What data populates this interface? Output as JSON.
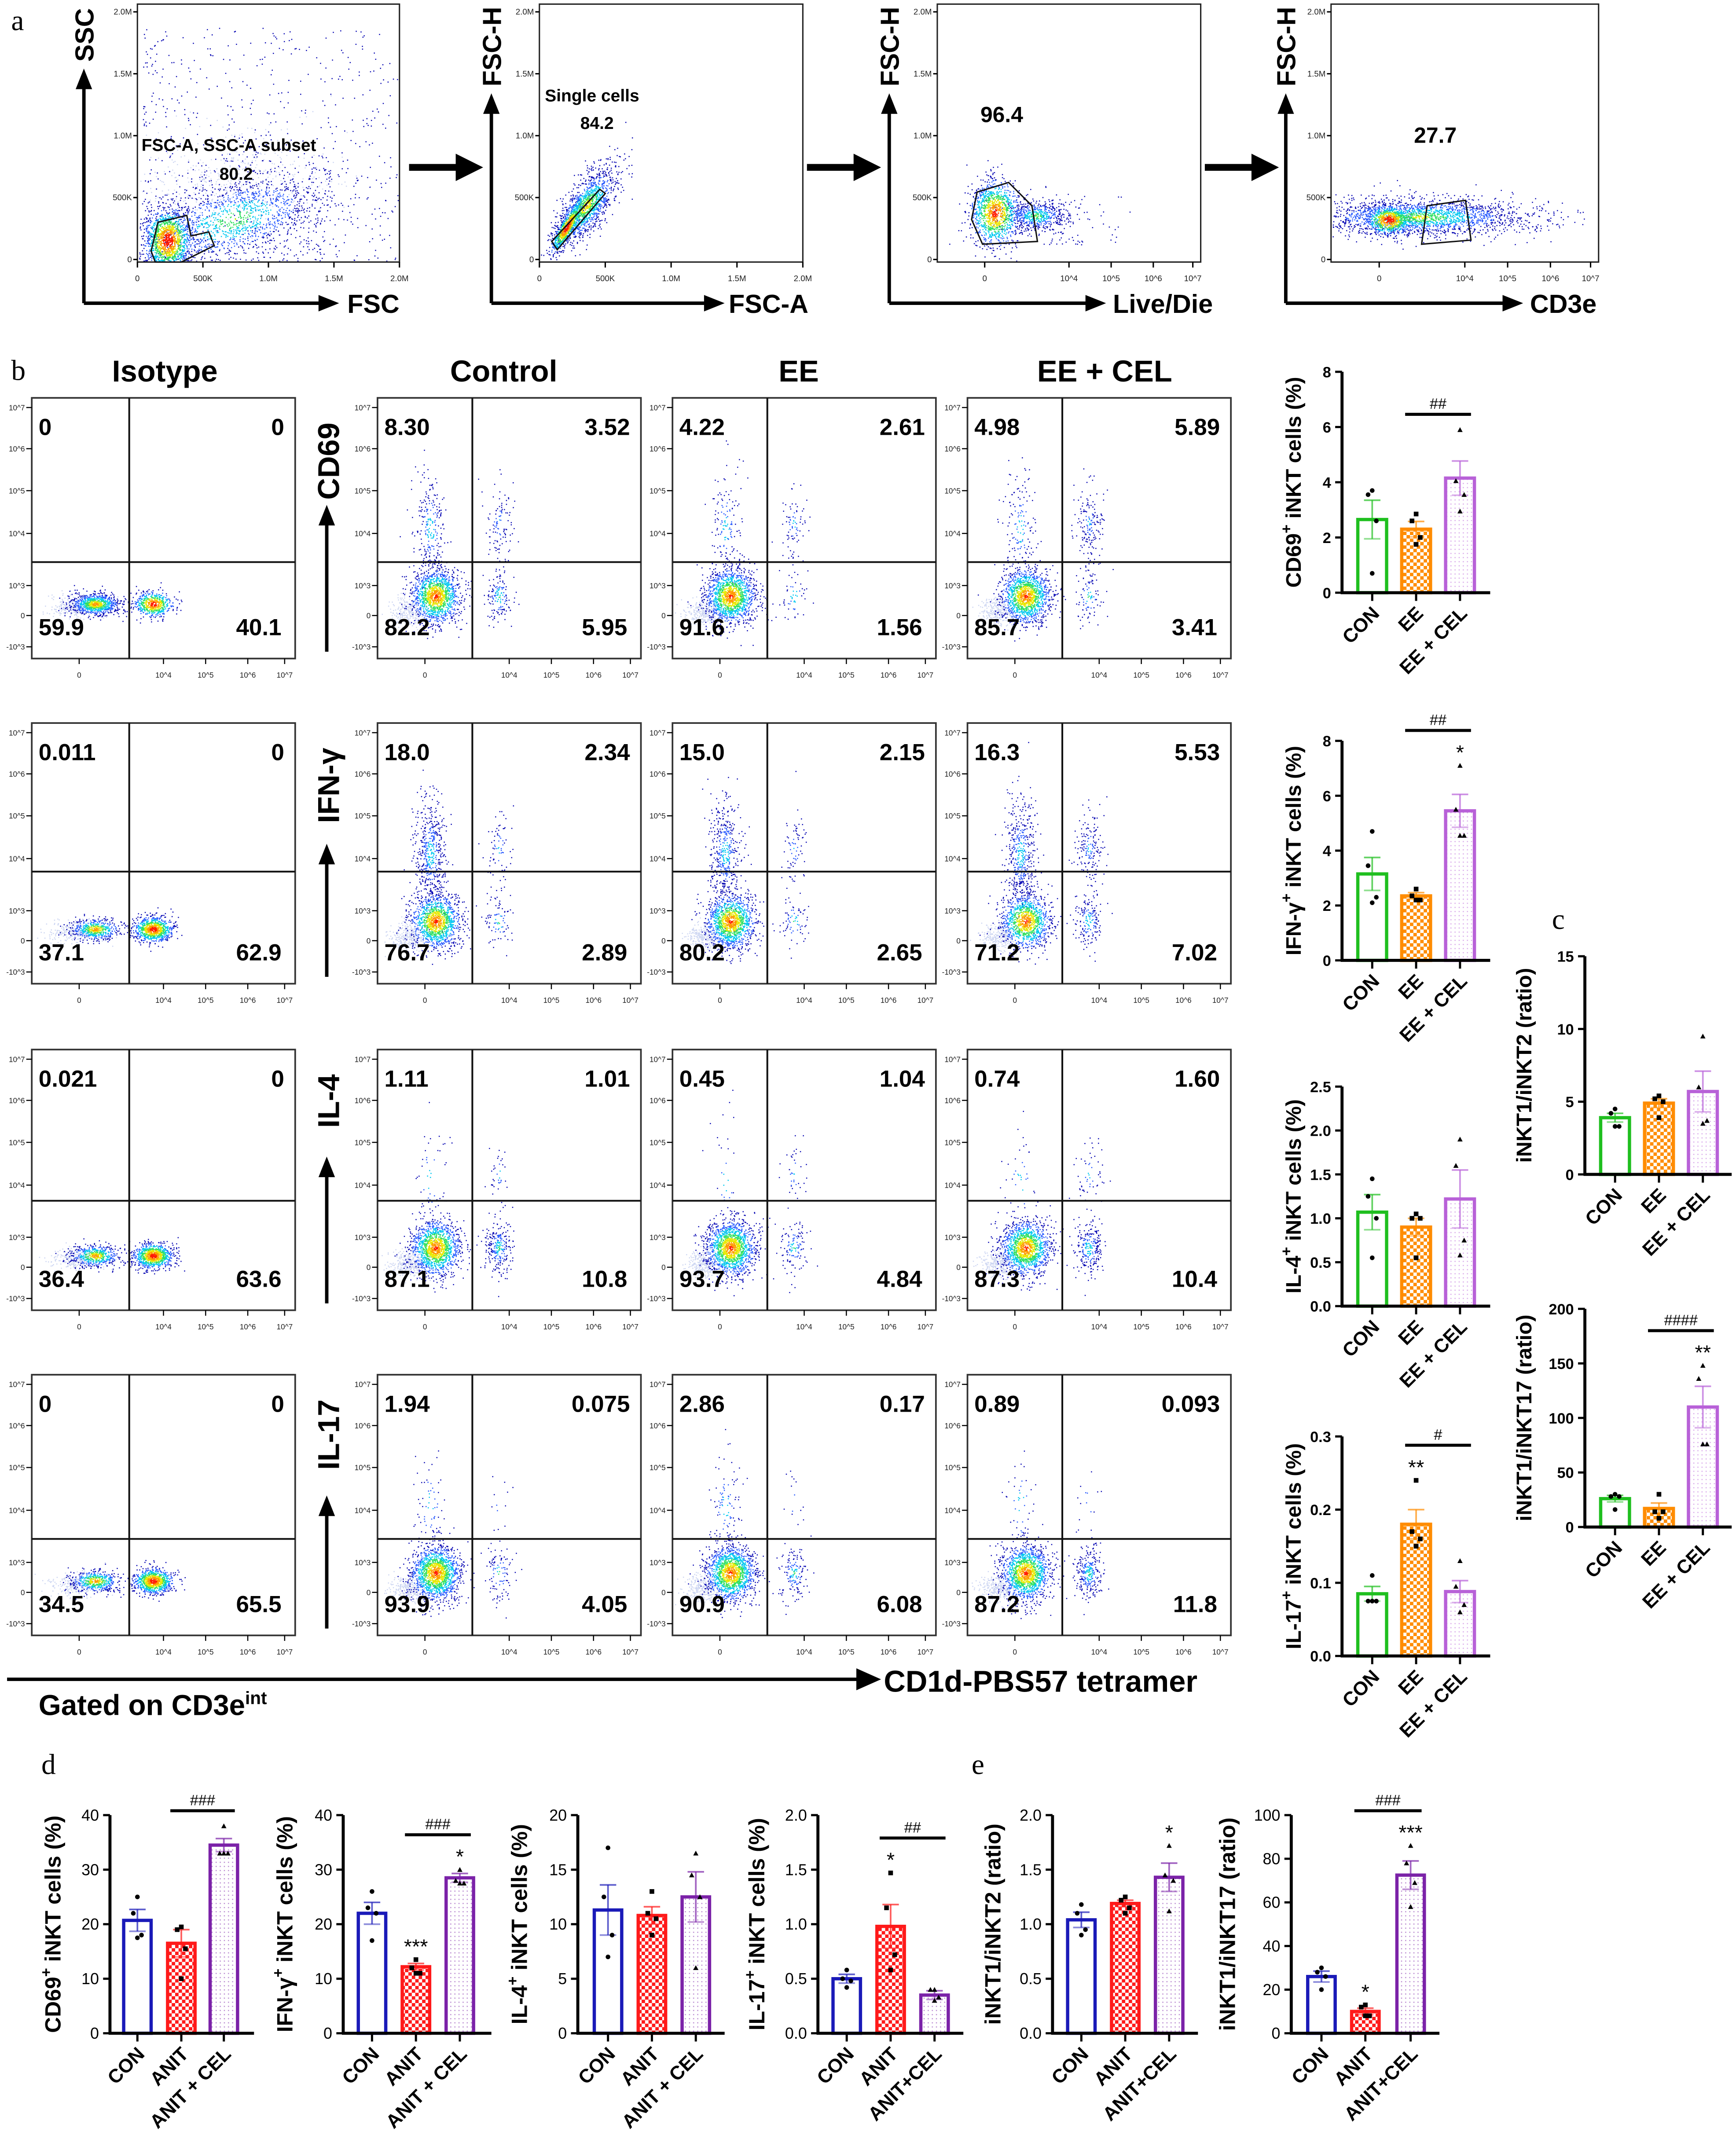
{
  "panel_labels": {
    "a": "a",
    "b": "b",
    "c": "c",
    "d": "d",
    "e": "e"
  },
  "gating": {
    "plots": [
      {
        "y_label": "SSC",
        "x_label": "FSC",
        "gate_name": "FSC-A, SSC-A subset",
        "gate_value": "80.2",
        "y_ticks": [
          "2.0M",
          "1.5M",
          "1.0M",
          "500K",
          "0"
        ],
        "x_ticks": [
          "0",
          "500K",
          "1.0M",
          "1.5M",
          "2.0M"
        ]
      },
      {
        "y_label": "FSC-H",
        "x_label": "FSC-A",
        "gate_name": "Single cells",
        "gate_value": "84.2",
        "y_ticks": [
          "2.0M",
          "1.5M",
          "1.0M",
          "500K",
          "0"
        ],
        "x_ticks": [
          "0",
          "500K",
          "1.0M",
          "1.5M",
          "2.0M"
        ]
      },
      {
        "y_label": "FSC-H",
        "x_label": "Live/Die",
        "gate_value": "96.4",
        "y_ticks": [
          "2.0M",
          "1.5M",
          "1.0M",
          "500K",
          "0"
        ],
        "x_ticks": [
          "0",
          "10^4",
          "10^5",
          "10^6",
          "10^7"
        ]
      },
      {
        "y_label": "FSC-H",
        "x_label": "CD3e",
        "gate_value": "27.7",
        "y_ticks": [
          "2.0M",
          "1.5M",
          "1.0M",
          "500K",
          "0"
        ],
        "x_ticks": [
          "0",
          "10^4",
          "10^5",
          "10^6",
          "10^7"
        ]
      }
    ]
  },
  "flow": {
    "columns": [
      "Isotype",
      "Control",
      "EE",
      "EE + CEL"
    ],
    "x_axis_label": "CD1d-PBS57 tetramer",
    "gate_note": "Gated on CD3e",
    "gate_note_sup": "int",
    "y_ticks": [
      "10^7",
      "10^6",
      "10^5",
      "10^4",
      "10^3",
      "0",
      "-10^3"
    ],
    "x_ticks": [
      "0",
      "10^4",
      "10^5",
      "10^6",
      "10^7"
    ],
    "rows": [
      {
        "marker": "CD69",
        "quadrants": [
          [
            "0",
            "0",
            "59.9",
            "40.1"
          ],
          [
            "8.30",
            "3.52",
            "82.2",
            "5.95"
          ],
          [
            "4.22",
            "2.61",
            "91.6",
            "1.56"
          ],
          [
            "4.98",
            "5.89",
            "85.7",
            "3.41"
          ]
        ]
      },
      {
        "marker": "IFN-γ",
        "quadrants": [
          [
            "0.011",
            "0",
            "37.1",
            "62.9"
          ],
          [
            "18.0",
            "2.34",
            "76.7",
            "2.89"
          ],
          [
            "15.0",
            "2.15",
            "80.2",
            "2.65"
          ],
          [
            "16.3",
            "5.53",
            "71.2",
            "7.02"
          ]
        ]
      },
      {
        "marker": "IL-4",
        "quadrants": [
          [
            "0.021",
            "0",
            "36.4",
            "63.6"
          ],
          [
            "1.11",
            "1.01",
            "87.1",
            "10.8"
          ],
          [
            "0.45",
            "1.04",
            "93.7",
            "4.84"
          ],
          [
            "0.74",
            "1.60",
            "87.3",
            "10.4"
          ]
        ]
      },
      {
        "marker": "IL-17",
        "quadrants": [
          [
            "0",
            "0",
            "34.5",
            "65.5"
          ],
          [
            "1.94",
            "0.075",
            "93.9",
            "4.05"
          ],
          [
            "2.86",
            "0.17",
            "90.9",
            "6.08"
          ],
          [
            "0.89",
            "0.093",
            "87.2",
            "11.8"
          ]
        ]
      }
    ]
  },
  "chart_data": [
    {
      "id": "b-cd69",
      "panel": "b",
      "type": "bar",
      "ylabel": {
        "main": "CD69",
        "sup": "+",
        "rest": " iNKT cells (%)"
      },
      "categories": [
        "CON",
        "EE",
        "EE + CEL"
      ],
      "values": [
        2.65,
        2.3,
        4.15
      ],
      "sem": [
        0.7,
        0.28,
        0.62
      ],
      "points": [
        [
          3.7,
          3.55,
          2.6,
          0.7
        ],
        [
          2.85,
          2.6,
          2.0,
          1.75
        ],
        [
          5.9,
          4.05,
          3.55,
          2.95
        ]
      ],
      "ylim": [
        0,
        8
      ],
      "yticks": [
        "0",
        "2",
        "4",
        "6",
        "8"
      ],
      "stars": [
        "",
        "",
        ""
      ],
      "significance": [
        {
          "from": 1,
          "to": 2,
          "label": "##"
        }
      ],
      "colors": [
        "#1fbf1f",
        "#ff8c00",
        "#b861d8"
      ],
      "patterns": [
        "none",
        "checker",
        "dots"
      ],
      "markers": [
        "circle",
        "square",
        "triangle"
      ]
    },
    {
      "id": "b-ifng",
      "panel": "b",
      "type": "bar",
      "ylabel": {
        "main": "IFN-γ",
        "sup": "+",
        "rest": " iNKT cells (%)"
      },
      "categories": [
        "CON",
        "EE",
        "EE + CEL"
      ],
      "values": [
        3.15,
        2.35,
        5.45
      ],
      "sem": [
        0.6,
        0.12,
        0.6
      ],
      "points": [
        [
          4.7,
          3.45,
          2.3,
          2.1
        ],
        [
          2.6,
          2.35,
          2.2,
          2.2
        ],
        [
          7.1,
          5.5,
          4.55,
          4.55
        ]
      ],
      "ylim": [
        0,
        8
      ],
      "yticks": [
        "0",
        "2",
        "4",
        "6",
        "8"
      ],
      "stars": [
        "",
        "",
        "*"
      ],
      "significance": [
        {
          "from": 1,
          "to": 2,
          "label": "##"
        }
      ],
      "colors": [
        "#1fbf1f",
        "#ff8c00",
        "#b861d8"
      ],
      "patterns": [
        "none",
        "checker",
        "dots"
      ],
      "markers": [
        "circle",
        "square",
        "triangle"
      ]
    },
    {
      "id": "b-il4",
      "panel": "b",
      "type": "bar",
      "ylabel": {
        "main": "IL-4",
        "sup": "+",
        "rest": " iNKT cells (%)"
      },
      "categories": [
        "CON",
        "EE",
        "EE + CEL"
      ],
      "values": [
        1.07,
        0.9,
        1.22
      ],
      "sem": [
        0.2,
        0.1,
        0.33
      ],
      "points": [
        [
          1.45,
          1.25,
          1.0,
          0.55
        ],
        [
          1.05,
          1.0,
          1.0,
          0.55
        ],
        [
          1.9,
          1.6,
          0.75,
          0.58
        ]
      ],
      "ylim": [
        0,
        2.5
      ],
      "yticks": [
        "0.0",
        "0.5",
        "1.0",
        "1.5",
        "2.0",
        "2.5"
      ],
      "stars": [
        "",
        "",
        ""
      ],
      "significance": [],
      "colors": [
        "#1fbf1f",
        "#ff8c00",
        "#b861d8"
      ],
      "patterns": [
        "none",
        "checker",
        "dots"
      ],
      "markers": [
        "circle",
        "square",
        "triangle"
      ]
    },
    {
      "id": "b-il17",
      "panel": "b",
      "type": "bar",
      "ylabel": {
        "main": "IL-17",
        "sup": "+",
        "rest": " iNKT cells (%)"
      },
      "categories": [
        "CON",
        "EE",
        "EE + CEL"
      ],
      "values": [
        0.085,
        0.18,
        0.088
      ],
      "sem": [
        0.01,
        0.02,
        0.015
      ],
      "points": [
        [
          0.11,
          0.075,
          0.075,
          0.075
        ],
        [
          0.24,
          0.17,
          0.16,
          0.15
        ],
        [
          0.13,
          0.095,
          0.07,
          0.06
        ]
      ],
      "ylim": [
        0,
        0.3
      ],
      "yticks": [
        "0.0",
        "0.1",
        "0.2",
        "0.3"
      ],
      "stars": [
        "",
        "**",
        ""
      ],
      "significance": [
        {
          "from": 1,
          "to": 2,
          "label": "#"
        }
      ],
      "colors": [
        "#1fbf1f",
        "#ff8c00",
        "#b861d8"
      ],
      "patterns": [
        "none",
        "checker",
        "dots"
      ],
      "markers": [
        "circle",
        "square",
        "triangle"
      ]
    },
    {
      "id": "c-ratio-12",
      "panel": "c",
      "type": "bar",
      "ylabel": {
        "main": "iNKT1/iNKT2 (ratio)"
      },
      "categories": [
        "CON",
        "EE",
        "EE + CEL"
      ],
      "values": [
        3.9,
        4.9,
        5.7
      ],
      "sem": [
        0.3,
        0.3,
        1.4
      ],
      "points": [
        [
          4.5,
          4.2,
          3.3,
          3.3
        ],
        [
          5.4,
          5.2,
          5.0,
          3.9
        ],
        [
          9.5,
          6.0,
          3.7,
          3.5
        ]
      ],
      "ylim": [
        0,
        15
      ],
      "yticks": [
        "0",
        "5",
        "10",
        "15"
      ],
      "stars": [
        "",
        "",
        ""
      ],
      "significance": [],
      "colors": [
        "#1fbf1f",
        "#ff8c00",
        "#b861d8"
      ],
      "patterns": [
        "none",
        "checker",
        "dots"
      ],
      "markers": [
        "circle",
        "square",
        "triangle"
      ]
    },
    {
      "id": "c-ratio-117",
      "panel": "c",
      "type": "bar",
      "ylabel": {
        "main": "iNKT1/iNKT17 (ratio)"
      },
      "categories": [
        "CON",
        "EE",
        "EE + CEL"
      ],
      "values": [
        26,
        17,
        110
      ],
      "sem": [
        3,
        5,
        19
      ],
      "points": [
        [
          30,
          28,
          28,
          16
        ],
        [
          30,
          14,
          14,
          8
        ],
        [
          148,
          136,
          76,
          76
        ]
      ],
      "ylim": [
        0,
        200
      ],
      "yticks": [
        "0",
        "50",
        "100",
        "150",
        "200"
      ],
      "stars": [
        "",
        "",
        "**"
      ],
      "significance": [
        {
          "from": 1,
          "to": 2,
          "label": "####"
        }
      ],
      "colors": [
        "#1fbf1f",
        "#ff8c00",
        "#b861d8"
      ],
      "patterns": [
        "none",
        "checker",
        "dots"
      ],
      "markers": [
        "circle",
        "square",
        "triangle"
      ]
    },
    {
      "id": "d-cd69",
      "panel": "d",
      "type": "bar",
      "ylabel": {
        "main": "CD69",
        "sup": "+",
        "rest": " iNKT cells (%)"
      },
      "categories": [
        "CON",
        "ANIT",
        "ANIT + CEL"
      ],
      "values": [
        20.7,
        16.5,
        34.5
      ],
      "sem": [
        2,
        2.5,
        1.2
      ],
      "points": [
        [
          25,
          22,
          18,
          17.5
        ],
        [
          19.5,
          19,
          15.5,
          10
        ],
        [
          38,
          33,
          33,
          33
        ]
      ],
      "ylim": [
        0,
        40
      ],
      "yticks": [
        "0",
        "10",
        "20",
        "30",
        "40"
      ],
      "stars": [
        "",
        "",
        ""
      ],
      "significance": [
        {
          "from": 1,
          "to": 2,
          "label": "###"
        }
      ],
      "colors": [
        "#1a1ab8",
        "#ff1a1a",
        "#7b22a8"
      ],
      "patterns": [
        "none",
        "checker",
        "dots"
      ],
      "markers": [
        "circle",
        "square",
        "triangle"
      ]
    },
    {
      "id": "d-ifng",
      "panel": "d",
      "type": "bar",
      "ylabel": {
        "main": "IFN-γ",
        "sup": "+",
        "rest": " iNKT cells (%)"
      },
      "categories": [
        "CON",
        "ANIT",
        "ANIT + CEL"
      ],
      "values": [
        22,
        12.2,
        28.5
      ],
      "sem": [
        2,
        0.6,
        0.8
      ],
      "points": [
        [
          26,
          23,
          22,
          17
        ],
        [
          13.5,
          12,
          11,
          11
        ],
        [
          30,
          28,
          27.5,
          27.5
        ]
      ],
      "ylim": [
        0,
        40
      ],
      "yticks": [
        "0",
        "10",
        "20",
        "30",
        "40"
      ],
      "stars": [
        "",
        "***",
        "*"
      ],
      "significance": [
        {
          "from": 1,
          "to": 2,
          "label": "###"
        }
      ],
      "colors": [
        "#1a1ab8",
        "#ff1a1a",
        "#7b22a8"
      ],
      "patterns": [
        "none",
        "checker",
        "dots"
      ],
      "markers": [
        "circle",
        "square",
        "triangle"
      ]
    },
    {
      "id": "d-il4",
      "panel": "d",
      "type": "bar",
      "ylabel": {
        "main": "IL-4",
        "sup": "+",
        "rest": " iNKT cells (%)"
      },
      "categories": [
        "CON",
        "ANIT",
        "ANIT + CEL"
      ],
      "values": [
        11.3,
        10.8,
        12.5
      ],
      "sem": [
        2.3,
        0.8,
        2.3
      ],
      "points": [
        [
          17,
          12.5,
          9,
          7
        ],
        [
          13,
          11,
          10.5,
          9
        ],
        [
          16.5,
          14.5,
          12.5,
          6
        ]
      ],
      "ylim": [
        0,
        20
      ],
      "yticks": [
        "0",
        "5",
        "10",
        "15",
        "20"
      ],
      "stars": [
        "",
        "",
        ""
      ],
      "significance": [],
      "colors": [
        "#1a1ab8",
        "#ff1a1a",
        "#7b22a8"
      ],
      "patterns": [
        "none",
        "checker",
        "dots"
      ],
      "markers": [
        "circle",
        "square",
        "triangle"
      ]
    },
    {
      "id": "d-il17",
      "panel": "d",
      "type": "bar",
      "ylabel": {
        "main": "IL-17",
        "sup": "+",
        "rest": " iNKT cells (%)"
      },
      "categories": [
        "CON",
        "ANIT",
        "ANIT+CEL"
      ],
      "values": [
        0.5,
        0.98,
        0.35
      ],
      "sem": [
        0.04,
        0.2,
        0.04
      ],
      "points": [
        [
          0.58,
          0.5,
          0.48,
          0.42
        ],
        [
          1.47,
          1.15,
          0.72,
          0.58
        ],
        [
          0.4,
          0.4,
          0.33,
          0.3
        ]
      ],
      "ylim": [
        0,
        2
      ],
      "yticks": [
        "0.0",
        "0.5",
        "1.0",
        "1.5",
        "2.0"
      ],
      "stars": [
        "",
        "*",
        ""
      ],
      "significance": [
        {
          "from": 1,
          "to": 2,
          "label": "##"
        }
      ],
      "colors": [
        "#1a1ab8",
        "#ff1a1a",
        "#7b22a8"
      ],
      "patterns": [
        "none",
        "checker",
        "dots"
      ],
      "markers": [
        "circle",
        "square",
        "triangle"
      ]
    },
    {
      "id": "e-ratio-12",
      "panel": "e",
      "type": "bar",
      "ylabel": {
        "main": "iNKT1/iNKT2 (ratio)"
      },
      "categories": [
        "CON",
        "ANIT",
        "ANIT+CEL"
      ],
      "values": [
        1.04,
        1.19,
        1.43
      ],
      "sem": [
        0.07,
        0.03,
        0.13
      ],
      "points": [
        [
          1.18,
          1.1,
          0.95,
          0.9
        ],
        [
          1.25,
          1.22,
          1.15,
          1.1
        ],
        [
          1.72,
          1.45,
          1.4,
          1.12
        ]
      ],
      "ylim": [
        0,
        2
      ],
      "yticks": [
        "0.0",
        "0.5",
        "1.0",
        "1.5",
        "2.0"
      ],
      "stars": [
        "",
        "",
        "*"
      ],
      "significance": [],
      "colors": [
        "#1a1ab8",
        "#ff1a1a",
        "#7b22a8"
      ],
      "patterns": [
        "none",
        "checker",
        "dots"
      ],
      "markers": [
        "circle",
        "square",
        "triangle"
      ]
    },
    {
      "id": "e-ratio-117",
      "panel": "e",
      "type": "bar",
      "ylabel": {
        "main": "iNKT1/iNKT17 (ratio)"
      },
      "categories": [
        "CON",
        "ANIT",
        "ANIT+CEL"
      ],
      "values": [
        26,
        10,
        72.5
      ],
      "sem": [
        2.5,
        1.5,
        6.5
      ],
      "points": [
        [
          30,
          28,
          26,
          20
        ],
        [
          13,
          12,
          8,
          8
        ],
        [
          86,
          78,
          69,
          58
        ]
      ],
      "ylim": [
        0,
        100
      ],
      "yticks": [
        "0",
        "20",
        "40",
        "60",
        "80",
        "100"
      ],
      "stars": [
        "",
        "*",
        "***"
      ],
      "significance": [
        {
          "from": 1,
          "to": 2,
          "label": "###"
        }
      ],
      "colors": [
        "#1a1ab8",
        "#ff1a1a",
        "#7b22a8"
      ],
      "patterns": [
        "none",
        "checker",
        "dots"
      ],
      "markers": [
        "circle",
        "square",
        "triangle"
      ]
    }
  ]
}
